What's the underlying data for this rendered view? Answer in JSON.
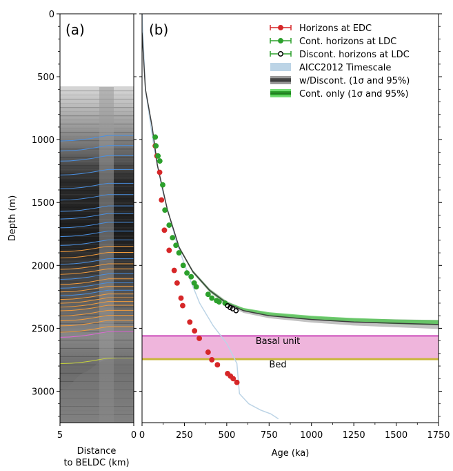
{
  "figure": {
    "y_axis_label": "Depth (m)",
    "colors": {
      "edc": "#d62728",
      "cont": "#2ca02c",
      "discont": "#000000",
      "aicc": "#bcd4e6",
      "wdiscont": "#555555",
      "contband": "#49c44a",
      "basal_fill": "#efb5dc",
      "basal_line": "#d56bc6",
      "bed_line": "#c8b63a"
    }
  },
  "chart_data": [
    {
      "panel_label": "(a)",
      "type": "radargram",
      "xlabel": "Distance\nto BELDC (km)",
      "xlim": [
        5,
        0
      ],
      "x_ticks": [
        "5",
        "0"
      ],
      "ylim": [
        3250,
        0
      ],
      "y_ticks": [
        "0",
        "500",
        "1000",
        "1500",
        "2000",
        "2500",
        "3000"
      ],
      "data_top_depth_m": 580,
      "horizons": [
        {
          "color": "blue",
          "depth_m": 1000
        },
        {
          "color": "blue",
          "depth_m": 1080
        },
        {
          "color": "blue",
          "depth_m": 1160
        },
        {
          "color": "blue",
          "depth_m": 1270
        },
        {
          "color": "blue",
          "depth_m": 1380
        },
        {
          "color": "blue",
          "depth_m": 1470
        },
        {
          "color": "blue",
          "depth_m": 1560
        },
        {
          "color": "blue",
          "depth_m": 1620
        },
        {
          "color": "blue",
          "depth_m": 1690
        },
        {
          "color": "blue",
          "depth_m": 1760
        },
        {
          "color": "blue",
          "depth_m": 1830
        },
        {
          "color": "orange",
          "depth_m": 1880
        },
        {
          "color": "orange",
          "depth_m": 1930
        },
        {
          "color": "blue",
          "depth_m": 1980
        },
        {
          "color": "orange",
          "depth_m": 2020
        },
        {
          "color": "orange",
          "depth_m": 2060
        },
        {
          "color": "blue",
          "depth_m": 2100
        },
        {
          "color": "orange",
          "depth_m": 2140
        },
        {
          "color": "blue",
          "depth_m": 2170
        },
        {
          "color": "orange",
          "depth_m": 2200
        },
        {
          "color": "blue",
          "depth_m": 2230
        },
        {
          "color": "orange",
          "depth_m": 2260
        },
        {
          "color": "orange",
          "depth_m": 2290
        },
        {
          "color": "orange",
          "depth_m": 2320
        },
        {
          "color": "orange",
          "depth_m": 2350
        },
        {
          "color": "orange",
          "depth_m": 2390
        },
        {
          "color": "orange",
          "depth_m": 2430
        },
        {
          "color": "orange",
          "depth_m": 2470
        },
        {
          "color": "orange",
          "depth_m": 2520
        },
        {
          "color": "magenta",
          "depth_m": 2560
        },
        {
          "color": "yellow",
          "depth_m": 2770
        }
      ]
    },
    {
      "panel_label": "(b)",
      "type": "scatter",
      "xlabel": "Age (ka)",
      "xlim": [
        0,
        1750
      ],
      "x_ticks": [
        "0",
        "250",
        "500",
        "750",
        "1000",
        "1250",
        "1500",
        "1750"
      ],
      "ylim": [
        3250,
        0
      ],
      "legend_position": "top-right",
      "legend": [
        {
          "label": "Horizons at EDC",
          "kind": "edc"
        },
        {
          "label": "Cont. horizons at LDC",
          "kind": "cont"
        },
        {
          "label": "Discont. horizons at LDC",
          "kind": "discont"
        },
        {
          "label": "AICC2012 Timescale",
          "kind": "aicc"
        },
        {
          "label": "w/Discont. (1σ and 95%)",
          "kind": "wdiscont"
        },
        {
          "label": "Cont. only (1σ and 95%)",
          "kind": "contband"
        }
      ],
      "annotations": {
        "basal": "Basal unit",
        "bed": "Bed"
      },
      "basal_unit_m": [
        2560,
        2745
      ],
      "bed_depth_m": 2745,
      "series": [
        {
          "name": "Horizons at EDC",
          "points": [
            [
              78,
              1050
            ],
            [
              88,
              1130
            ],
            [
              104,
              1260
            ],
            [
              115,
              1480
            ],
            [
              132,
              1720
            ],
            [
              160,
              1880
            ],
            [
              190,
              2040
            ],
            [
              207,
              2140
            ],
            [
              230,
              2260
            ],
            [
              240,
              2320
            ],
            [
              282,
              2450
            ],
            [
              310,
              2520
            ],
            [
              338,
              2580
            ],
            [
              390,
              2690
            ],
            [
              412,
              2750
            ],
            [
              445,
              2790
            ],
            [
              505,
              2860
            ],
            [
              522,
              2880
            ],
            [
              538,
              2900
            ],
            [
              560,
              2930
            ]
          ]
        },
        {
          "name": "Cont. horizons at LDC",
          "points": [
            [
              78,
              980
            ],
            [
              82,
              1050
            ],
            [
              94,
              1130
            ],
            [
              105,
              1170
            ],
            [
              122,
              1360
            ],
            [
              135,
              1560
            ],
            [
              160,
              1680
            ],
            [
              180,
              1780
            ],
            [
              200,
              1840
            ],
            [
              218,
              1900
            ],
            [
              243,
              2000
            ],
            [
              265,
              2060
            ],
            [
              290,
              2090
            ],
            [
              308,
              2140
            ],
            [
              320,
              2170
            ],
            [
              390,
              2230
            ],
            [
              412,
              2260
            ],
            [
              440,
              2280
            ],
            [
              455,
              2290
            ],
            [
              490,
              2300
            ]
          ]
        },
        {
          "name": "Discont. horizons at LDC",
          "points": [
            [
              505,
              2320
            ],
            [
              520,
              2335
            ],
            [
              535,
              2345
            ],
            [
              555,
              2360
            ]
          ]
        },
        {
          "name": "AICC2012 Timescale",
          "points": [
            [
              0,
              0
            ],
            [
              20,
              600
            ],
            [
              75,
              1100
            ],
            [
              120,
              1400
            ],
            [
              200,
              1800
            ],
            [
              280,
              2100
            ],
            [
              340,
              2300
            ],
            [
              420,
              2480
            ],
            [
              500,
              2620
            ],
            [
              560,
              2780
            ],
            [
              575,
              3020
            ],
            [
              630,
              3100
            ],
            [
              700,
              3150
            ],
            [
              760,
              3180
            ],
            [
              805,
              3220
            ]
          ]
        },
        {
          "name": "w/Discont. (1σ and 95%)",
          "points": [
            [
              0,
              150
            ],
            [
              20,
              600
            ],
            [
              60,
              900
            ],
            [
              90,
              1200
            ],
            [
              150,
              1560
            ],
            [
              220,
              1860
            ],
            [
              300,
              2050
            ],
            [
              400,
              2200
            ],
            [
              500,
              2300
            ],
            [
              600,
              2360
            ],
            [
              750,
              2400
            ],
            [
              1000,
              2430
            ],
            [
              1250,
              2450
            ],
            [
              1500,
              2460
            ],
            [
              1750,
              2470
            ]
          ]
        },
        {
          "name": "Cont. only (1σ and 95%)",
          "points": [
            [
              0,
              150
            ],
            [
              20,
              600
            ],
            [
              60,
              900
            ],
            [
              90,
              1200
            ],
            [
              150,
              1560
            ],
            [
              220,
              1860
            ],
            [
              300,
              2050
            ],
            [
              400,
              2200
            ],
            [
              500,
              2300
            ],
            [
              600,
              2350
            ],
            [
              750,
              2385
            ],
            [
              1000,
              2415
            ],
            [
              1250,
              2435
            ],
            [
              1500,
              2448
            ],
            [
              1750,
              2455
            ]
          ]
        }
      ]
    }
  ]
}
